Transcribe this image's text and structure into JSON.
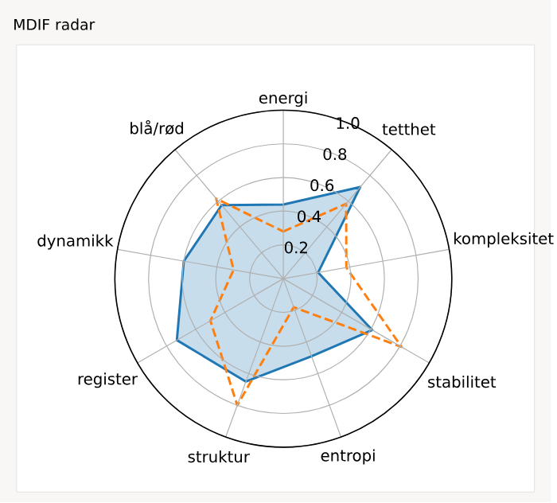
{
  "chart_data": {
    "type": "radar",
    "title": "MDIF radar",
    "categories": [
      "energi",
      "tetthet",
      "kompleksitet",
      "stabilitet",
      "entropi",
      "struktur",
      "register",
      "dynamikk",
      "blå/rød"
    ],
    "ylim": [
      0,
      1
    ],
    "yticks": [
      0.2,
      0.4,
      0.6,
      0.8,
      {
        "value": 1,
        "label": "1.0"
      }
    ],
    "grid": true,
    "series": [
      {
        "color": "#1f77b4",
        "values": [
          0.44,
          0.71,
          0.21,
          0.61,
          0.49,
          0.65,
          0.73,
          0.6,
          0.57
        ]
      },
      {
        "line_style": "dashed",
        "color": "#ff7f0e",
        "values": [
          0.28,
          0.58,
          0.38,
          0.81,
          0.18,
          0.8,
          0.5,
          0.3,
          0.62
        ]
      }
    ]
  }
}
